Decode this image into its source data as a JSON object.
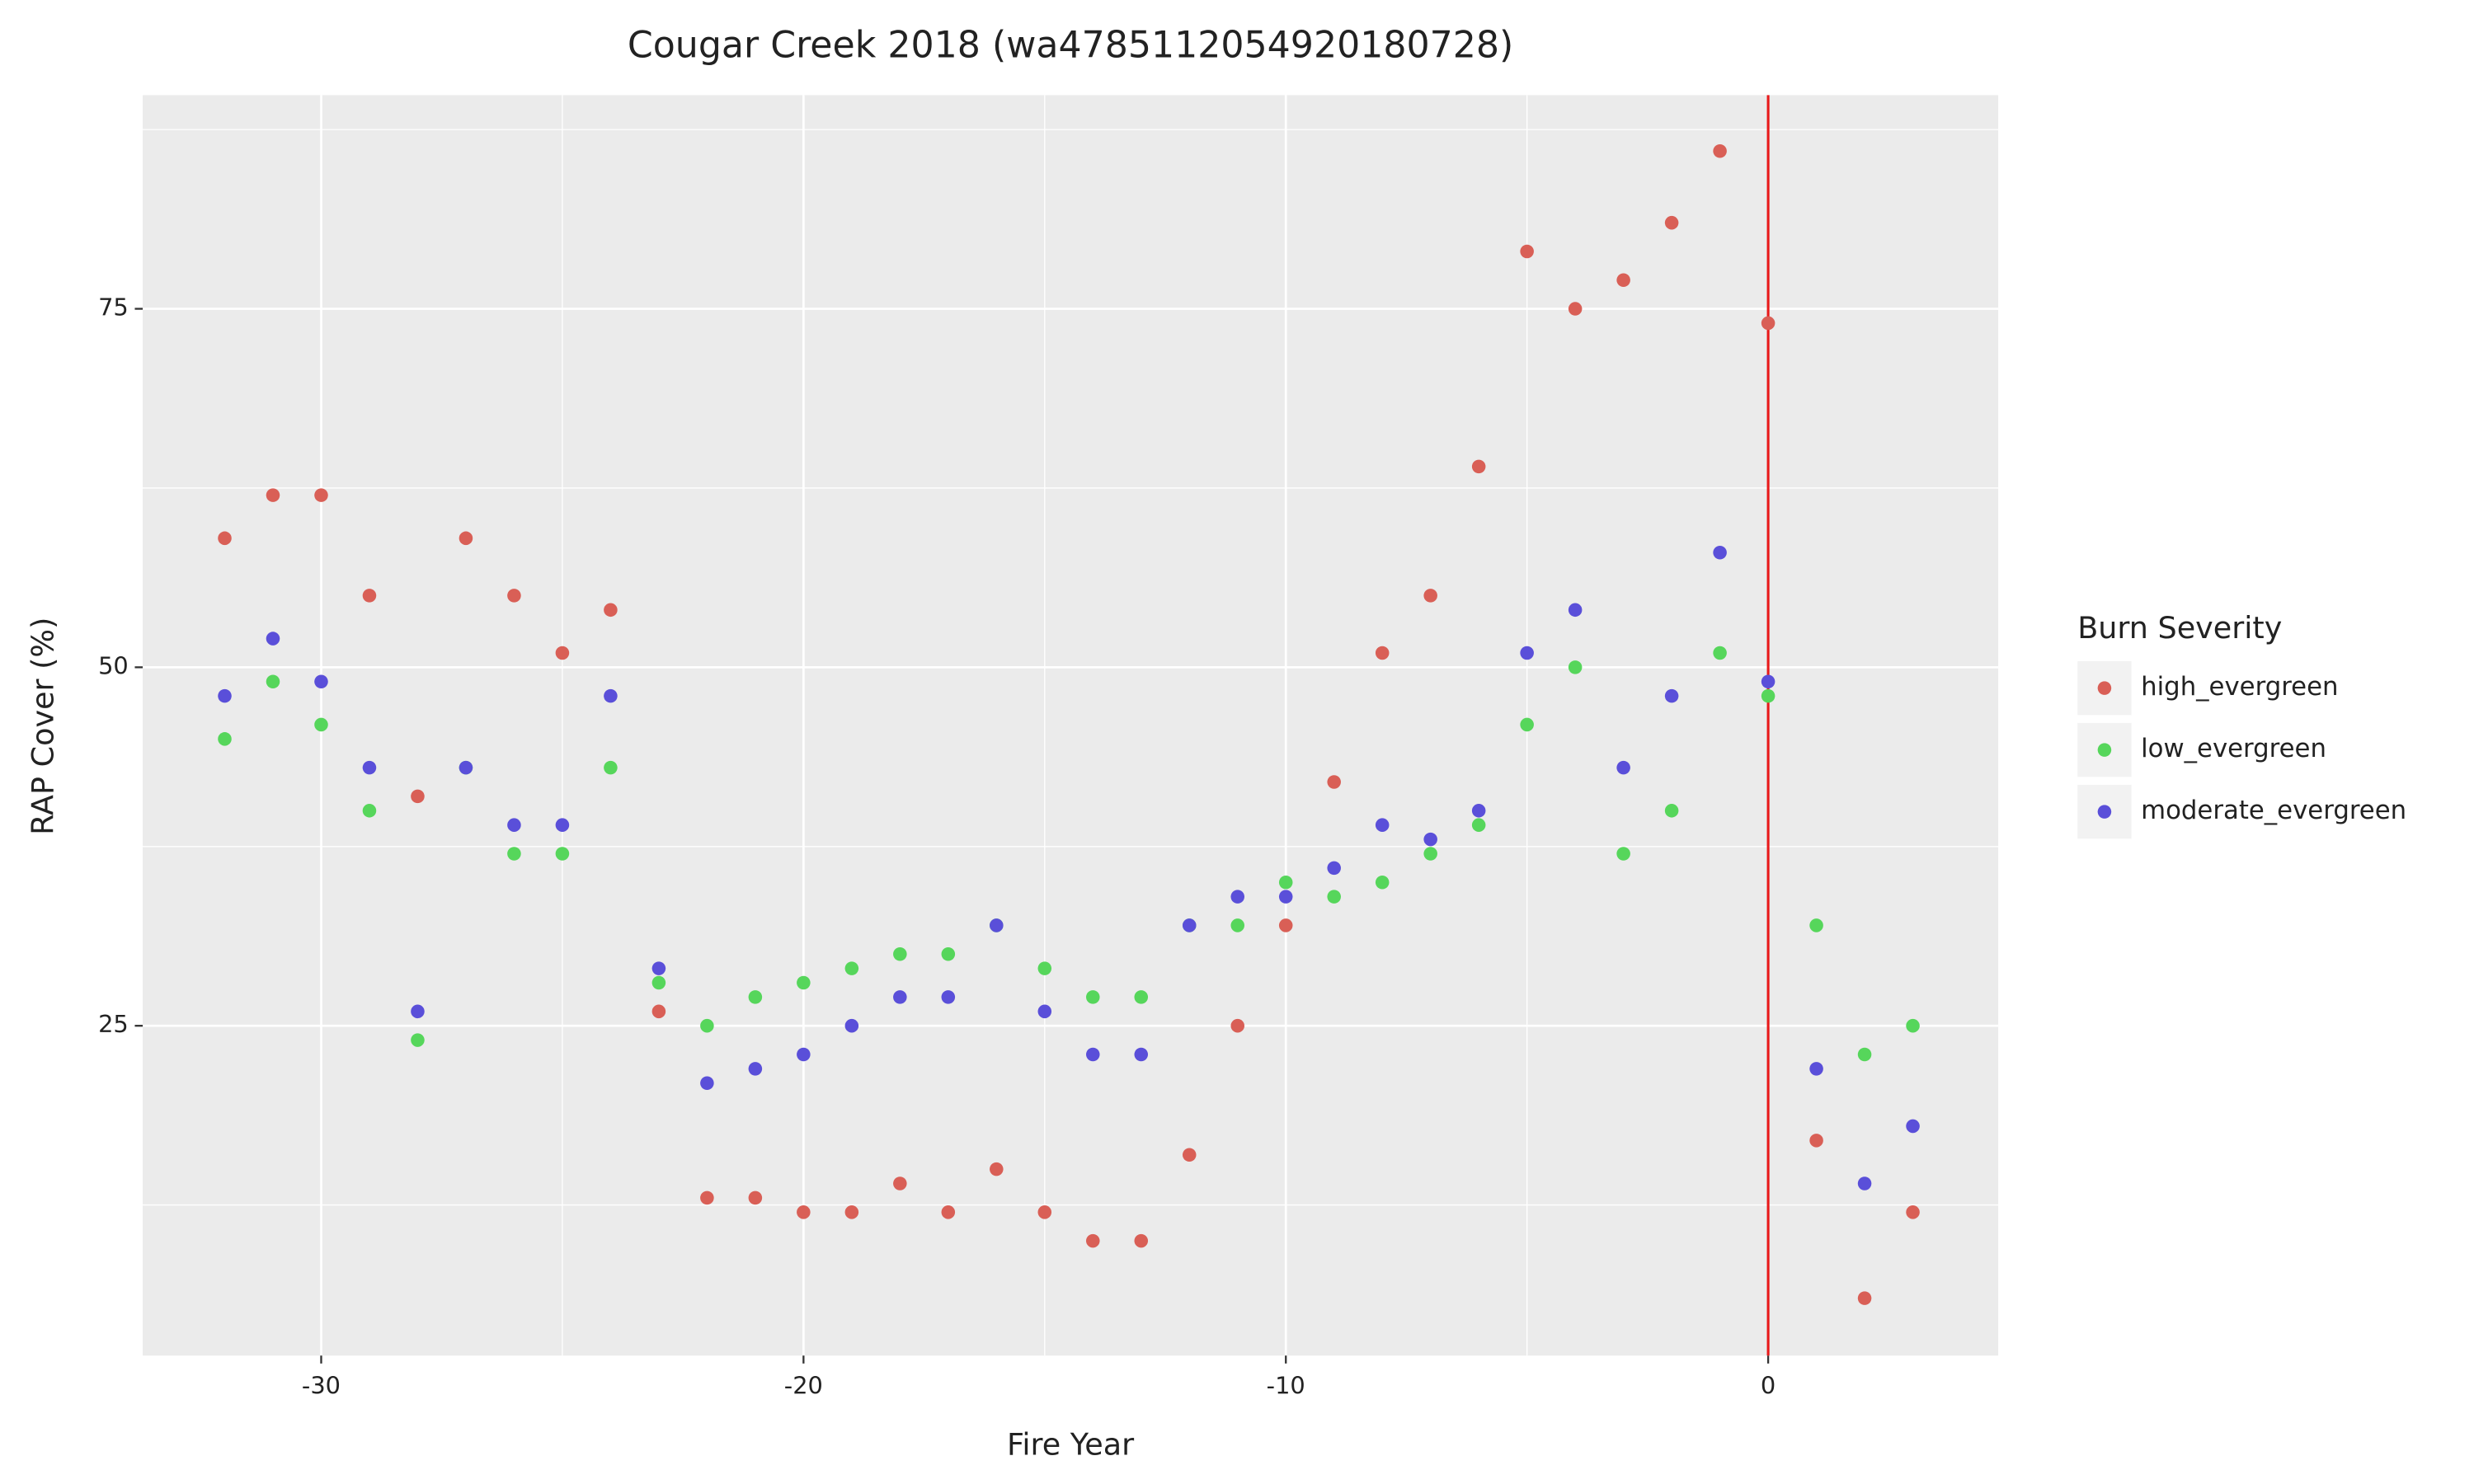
{
  "chart_data": {
    "type": "scatter",
    "title": "Cougar Creek 2018 (wa4785112054920180728)",
    "x_label": "Fire Year",
    "y_label": "RAP Cover (%)",
    "legend_title": "Burn Severity",
    "legend": "right",
    "grid": true,
    "x": [
      -32,
      -31,
      -30,
      -29,
      -28,
      -27,
      -26,
      -25,
      -24,
      -23,
      -22,
      -21,
      -20,
      -19,
      -18,
      -17,
      -16,
      -15,
      -14,
      -13,
      -12,
      -11,
      -10,
      -9,
      -8,
      -7,
      -6,
      -5,
      -4,
      -3,
      -2,
      -1,
      0,
      1,
      2,
      3
    ],
    "series": [
      {
        "name": "high_evergreen",
        "color": "#d95f56",
        "values": [
          59,
          62,
          62,
          55,
          41,
          59,
          55,
          51,
          54,
          26,
          13,
          13,
          12,
          12,
          14,
          12,
          15,
          12,
          10,
          10,
          16,
          25,
          32,
          42,
          51,
          55,
          64,
          79,
          75,
          77,
          81,
          86,
          74,
          17,
          6,
          12
        ]
      },
      {
        "name": "low_evergreen",
        "color": "#56d65b",
        "values": [
          45,
          49,
          46,
          40,
          24,
          43,
          37,
          37,
          43,
          28,
          25,
          27,
          28,
          29,
          30,
          30,
          32,
          29,
          27,
          27,
          32,
          32,
          35,
          34,
          35,
          37,
          39,
          46,
          50,
          37,
          40,
          51,
          48,
          32,
          23,
          25
        ]
      },
      {
        "name": "moderate_evergreen",
        "color": "#5a4fd9",
        "values": [
          48,
          52,
          49,
          43,
          26,
          43,
          39,
          39,
          48,
          29,
          21,
          22,
          23,
          25,
          27,
          27,
          32,
          26,
          23,
          23,
          32,
          34,
          34,
          36,
          39,
          38,
          40,
          51,
          54,
          43,
          48,
          58,
          49,
          22,
          14,
          18
        ]
      }
    ],
    "vline": 0,
    "vline_color": "#e8191a",
    "xlim": [
      -33.7,
      4.77
    ],
    "xticks": [
      -30,
      -20,
      -10,
      0
    ],
    "ylim": [
      2.0,
      89.9
    ],
    "yticks": [
      25,
      50,
      75
    ]
  }
}
